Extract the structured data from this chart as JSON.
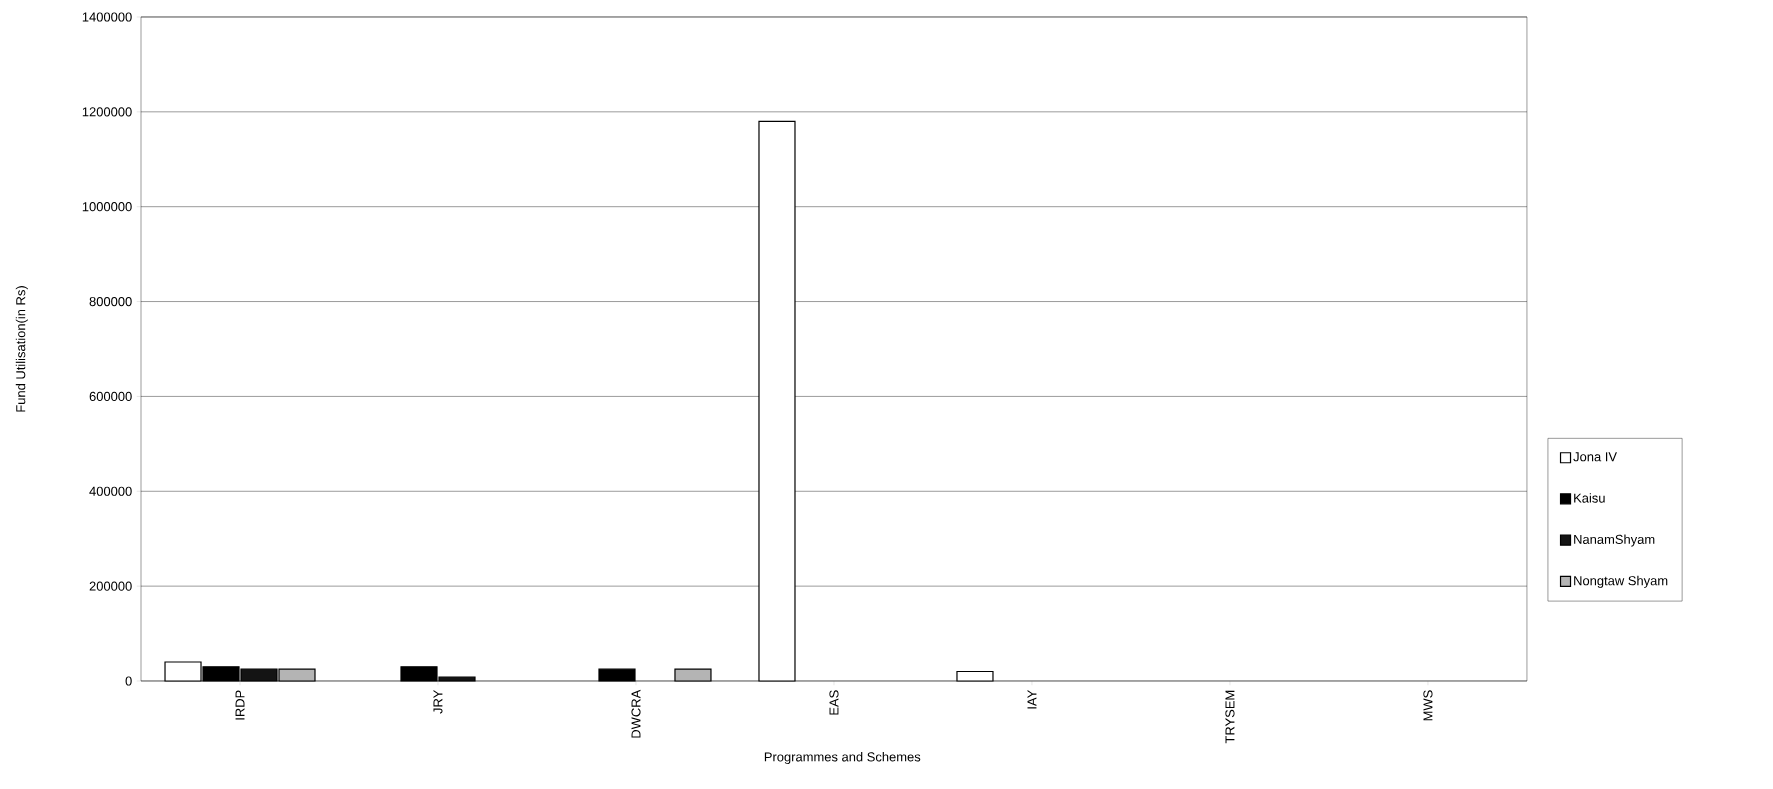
{
  "chart_data": {
    "type": "bar",
    "xlabel": "Programmes and Schemes",
    "ylabel": "Fund Utilisation(in Rs)",
    "categories": [
      "IRDP",
      "JRY",
      "DWCRA",
      "EAS",
      "IAY",
      "TRYSEM",
      "MWS"
    ],
    "series": [
      {
        "name": "Jona IV",
        "color": "#ffffff",
        "values": [
          40000,
          null,
          null,
          1180000,
          20000,
          null,
          null
        ]
      },
      {
        "name": "Kaisu",
        "color": "#000000",
        "values": [
          30000,
          30000,
          25000,
          null,
          null,
          null,
          null
        ]
      },
      {
        "name": "NanamShyam",
        "color": "#141414",
        "values": [
          25000,
          8000,
          null,
          null,
          null,
          null,
          null
        ]
      },
      {
        "name": "Nongtaw Shyam",
        "color": "#b4b4b4",
        "values": [
          25000,
          null,
          25000,
          null,
          null,
          null,
          null
        ]
      }
    ],
    "ylim": [
      0,
      1400000
    ],
    "yticks": [
      0,
      200000,
      400000,
      600000,
      800000,
      1000000,
      1200000,
      1400000
    ],
    "grid": "y",
    "legend": "right"
  }
}
